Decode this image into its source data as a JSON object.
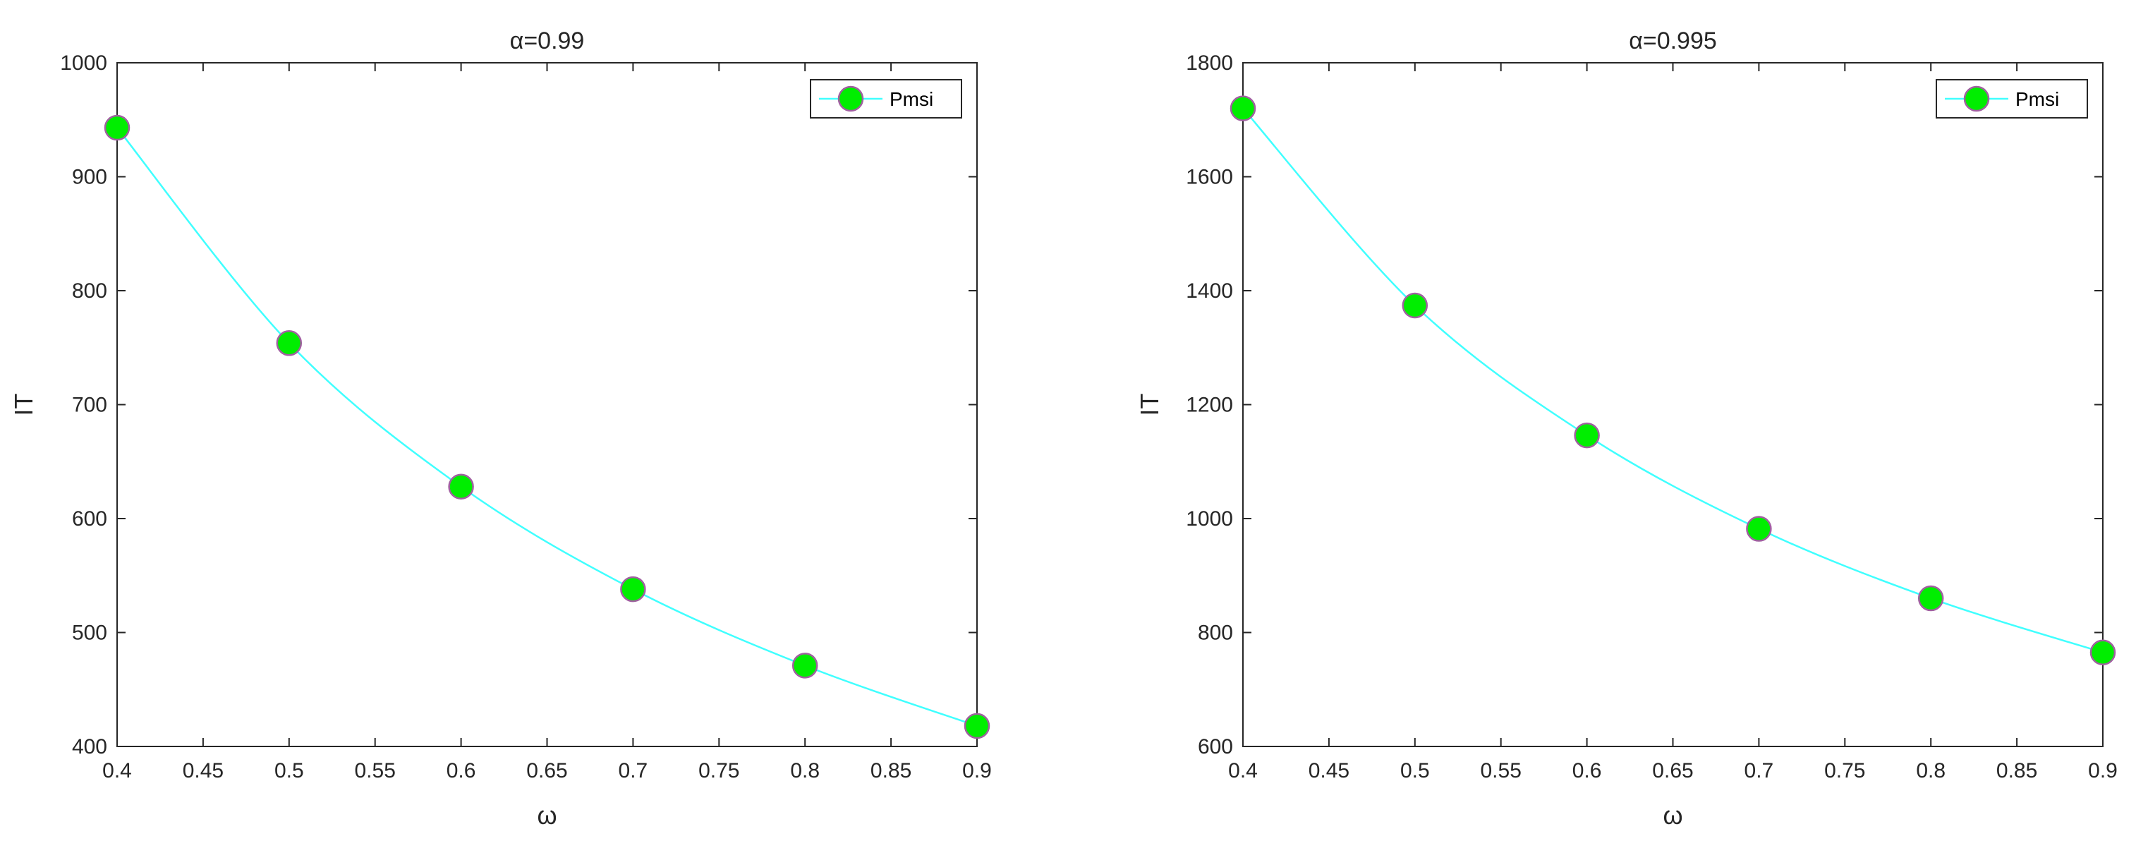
{
  "chart_data": [
    {
      "type": "line",
      "title": "α=0.99",
      "xlabel": "ω",
      "ylabel": "IT",
      "xlim": [
        0.4,
        0.9
      ],
      "ylim": [
        400,
        1000
      ],
      "xticks": [
        "0.4",
        "0.45",
        "0.5",
        "0.55",
        "0.6",
        "0.65",
        "0.7",
        "0.75",
        "0.8",
        "0.85",
        "0.9"
      ],
      "yticks": [
        "400",
        "500",
        "600",
        "700",
        "800",
        "900",
        "1000"
      ],
      "grid": false,
      "legend_position": "top-right",
      "series": [
        {
          "name": "Pmsi",
          "line_color": "#40ffff",
          "marker": "circle",
          "marker_fill": "#00ee00",
          "marker_edge": "#a060a0",
          "x": [
            0.4,
            0.5,
            0.6,
            0.7,
            0.8,
            0.9
          ],
          "y": [
            943,
            754,
            628,
            538,
            471,
            418
          ]
        }
      ]
    },
    {
      "type": "line",
      "title": "α=0.995",
      "xlabel": "ω",
      "ylabel": "IT",
      "xlim": [
        0.4,
        0.9
      ],
      "ylim": [
        600,
        1800
      ],
      "xticks": [
        "0.4",
        "0.45",
        "0.5",
        "0.55",
        "0.6",
        "0.65",
        "0.7",
        "0.75",
        "0.8",
        "0.85",
        "0.9"
      ],
      "yticks": [
        "600",
        "800",
        "1000",
        "1200",
        "1400",
        "1600",
        "1800"
      ],
      "grid": false,
      "legend_position": "top-right",
      "series": [
        {
          "name": "Pmsi",
          "line_color": "#40ffff",
          "marker": "circle",
          "marker_fill": "#00ee00",
          "marker_edge": "#a060a0",
          "x": [
            0.4,
            0.5,
            0.6,
            0.7,
            0.8,
            0.9
          ],
          "y": [
            1720,
            1374,
            1146,
            982,
            860,
            765
          ]
        }
      ]
    }
  ]
}
